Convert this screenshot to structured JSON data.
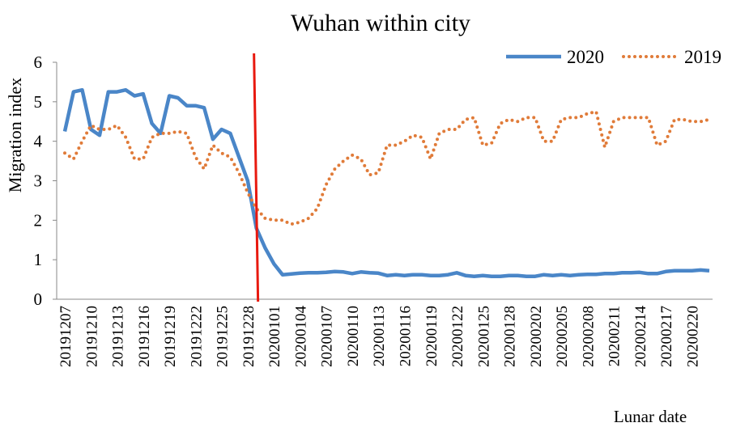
{
  "chart_data": {
    "type": "line",
    "title": "Wuhan within city",
    "x_label": "Lunar date",
    "y_label": "Migration index",
    "categories": [
      "20191207",
      null,
      null,
      "20191210",
      null,
      null,
      "20191213",
      null,
      null,
      "20191216",
      null,
      null,
      "20191219",
      null,
      null,
      "20191222",
      null,
      null,
      "20191225",
      null,
      null,
      "20191228",
      null,
      null,
      "20200101",
      null,
      null,
      "20200104",
      null,
      null,
      "20200107",
      null,
      null,
      "20200110",
      null,
      null,
      "20200113",
      null,
      null,
      "20200116",
      null,
      null,
      "20200119",
      null,
      null,
      "20200122",
      null,
      null,
      "20200125",
      null,
      null,
      "20200128",
      null,
      null,
      "20200202",
      null,
      null,
      "20200205",
      null,
      null,
      "20200208",
      null,
      null,
      "20200211",
      null,
      null,
      "20200214",
      null,
      null,
      "20200217",
      null,
      null,
      "20200220",
      null,
      null
    ],
    "series": [
      {
        "name": "2020",
        "color": "#4a86c8",
        "style": "solid",
        "values": [
          4.25,
          5.25,
          5.3,
          4.3,
          4.15,
          5.25,
          5.25,
          5.3,
          5.15,
          5.2,
          4.45,
          4.2,
          5.15,
          5.1,
          4.9,
          4.9,
          4.85,
          4.05,
          4.3,
          4.2,
          3.6,
          3.0,
          1.8,
          1.3,
          0.9,
          0.62,
          0.64,
          0.66,
          0.67,
          0.67,
          0.68,
          0.7,
          0.69,
          0.65,
          0.69,
          0.67,
          0.66,
          0.6,
          0.62,
          0.6,
          0.62,
          0.62,
          0.6,
          0.6,
          0.62,
          0.67,
          0.6,
          0.58,
          0.6,
          0.58,
          0.58,
          0.6,
          0.6,
          0.58,
          0.58,
          0.62,
          0.6,
          0.62,
          0.6,
          0.62,
          0.63,
          0.63,
          0.65,
          0.65,
          0.67,
          0.67,
          0.68,
          0.65,
          0.65,
          0.7,
          0.72,
          0.72,
          0.72,
          0.74,
          0.72
        ]
      },
      {
        "name": "2019",
        "color": "#e07b39",
        "style": "dotted",
        "values": [
          3.7,
          3.55,
          4.0,
          4.4,
          4.3,
          4.3,
          4.4,
          4.1,
          3.55,
          3.55,
          4.1,
          4.2,
          4.2,
          4.25,
          4.2,
          3.6,
          3.3,
          3.9,
          3.7,
          3.6,
          3.2,
          2.7,
          2.3,
          2.05,
          2.0,
          2.0,
          1.9,
          1.95,
          2.05,
          2.3,
          2.9,
          3.3,
          3.5,
          3.65,
          3.55,
          3.15,
          3.2,
          3.9,
          3.9,
          4.0,
          4.15,
          4.1,
          3.55,
          4.2,
          4.3,
          4.3,
          4.55,
          4.6,
          3.9,
          3.95,
          4.45,
          4.55,
          4.5,
          4.6,
          4.6,
          4.0,
          4.0,
          4.55,
          4.6,
          4.6,
          4.7,
          4.75,
          3.85,
          4.5,
          4.6,
          4.6,
          4.6,
          4.6,
          3.9,
          4.0,
          4.55,
          4.55,
          4.5,
          4.5,
          4.55
        ]
      }
    ],
    "reference_line": {
      "category_index": 22,
      "color": "#e8190f"
    },
    "ylim": [
      0,
      6
    ],
    "yticks": [
      0,
      1,
      2,
      3,
      4,
      5,
      6
    ],
    "grid": false,
    "legend": "upper-right"
  }
}
